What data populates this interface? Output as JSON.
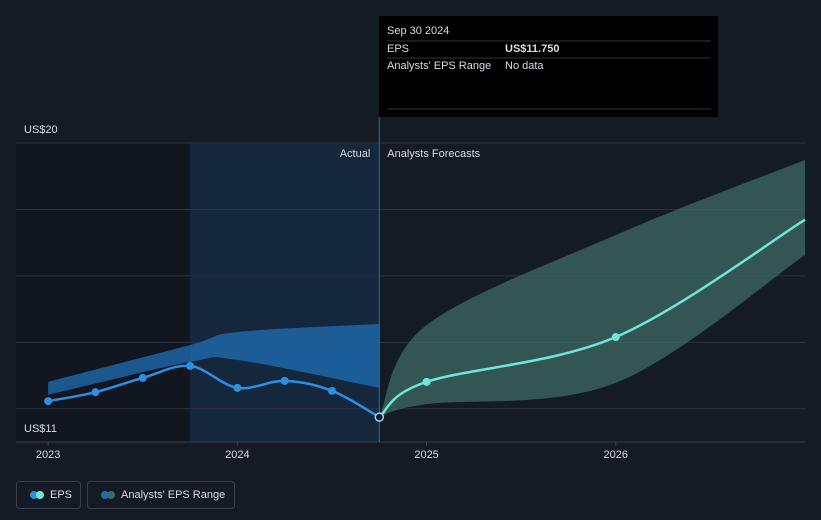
{
  "chart_data": {
    "type": "line",
    "xlim": [
      2022.83,
      2027.0
    ],
    "ylim": [
      11,
      20
    ],
    "xticks": [
      2023,
      2024,
      2025,
      2026
    ],
    "yticks": [
      {
        "value": 11,
        "label": "US$11"
      },
      {
        "value": 20,
        "label": "US$20"
      }
    ],
    "gridlines": [
      12,
      14,
      16,
      18,
      20
    ],
    "divider": 2024.75,
    "highlight_start": 2023.75,
    "divider_labels": [
      "Actual",
      "Analysts Forecasts"
    ],
    "series": [
      {
        "name": "EPS",
        "color": "#2d8fe0",
        "forecast_color": "#6ee7d4",
        "x": [
          2023,
          2023.25,
          2023.5,
          2023.75,
          2024,
          2024.25,
          2024.5,
          2024.75,
          2025,
          2026,
          2027
        ],
        "values": [
          12.23,
          12.5,
          12.93,
          13.29,
          12.63,
          12.84,
          12.54,
          11.75,
          12.81,
          14.16,
          17.69
        ]
      }
    ],
    "ranges": [
      {
        "color": "#1f6fb5",
        "x": [
          2023,
          2023.75,
          2024,
          2024.75
        ],
        "low": [
          12.42,
          13.41,
          13.47,
          12.63
        ],
        "high": [
          12.81,
          13.92,
          14.31,
          14.55
        ]
      },
      {
        "color": "#3d6b66",
        "x": [
          2024.75,
          2025,
          2026,
          2027
        ],
        "low": [
          11.75,
          12.14,
          12.78,
          16.63
        ],
        "high": [
          11.75,
          14.52,
          17.23,
          19.49
        ]
      }
    ],
    "legend": [
      "EPS",
      "Analysts' EPS Range"
    ],
    "tooltip": {
      "date": "Sep 30 2024",
      "rows": [
        [
          "EPS",
          "US$11.750"
        ],
        [
          "Analysts' EPS Range",
          "No data"
        ]
      ]
    }
  }
}
